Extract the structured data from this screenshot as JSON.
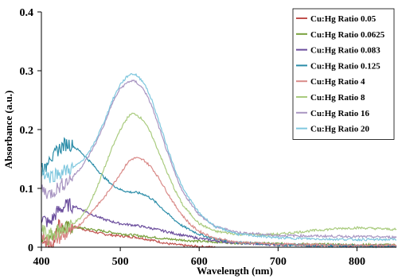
{
  "chart_data": {
    "type": "line",
    "title": "",
    "xlabel": "Wavelength (nm)",
    "ylabel": "Absorbance (a.u.)",
    "xlim": [
      400,
      850
    ],
    "ylim": [
      0,
      0.4
    ],
    "xticks": [
      400,
      500,
      600,
      700,
      800
    ],
    "xtick_labels": [
      "400",
      "500",
      "600",
      "700",
      "800"
    ],
    "yticks": [
      0,
      0.1,
      0.2,
      0.3,
      0.4
    ],
    "ytick_labels": [
      "0",
      "0.1",
      "0.2",
      "0.3",
      "0.4"
    ],
    "grid": false,
    "legend_position": "top-right",
    "series": [
      {
        "name": "Cu:Hg Ratio 0.05",
        "color": "#c0504d",
        "x": [
          400,
          405,
          410,
          415,
          420,
          425,
          430,
          440,
          450,
          460,
          480,
          500,
          520,
          540,
          560,
          580,
          600,
          620
        ],
        "y": [
          0.02,
          0.01,
          0.0,
          0.0,
          0.04,
          0.03,
          0.03,
          0.035,
          0.032,
          0.028,
          0.022,
          0.019,
          0.017,
          0.012,
          0.006,
          0.003,
          0.001,
          0.0
        ]
      },
      {
        "name": "Cu:Hg Ratio 0.0625",
        "color": "#77a03b",
        "x": [
          400,
          410,
          420,
          425,
          430,
          440,
          450,
          460,
          480,
          500,
          520,
          540,
          560,
          580,
          600,
          620,
          650,
          700,
          750,
          800,
          850
        ],
        "y": [
          0.02,
          0.015,
          0.03,
          0.032,
          0.033,
          0.034,
          0.033,
          0.031,
          0.027,
          0.023,
          0.02,
          0.017,
          0.014,
          0.012,
          0.01,
          0.009,
          0.007,
          0.006,
          0.005,
          0.004,
          0.004
        ]
      },
      {
        "name": "Cu:Hg Ratio 0.083",
        "color": "#6a4c9c",
        "x": [
          400,
          410,
          420,
          425,
          430,
          435,
          440,
          450,
          460,
          480,
          500,
          520,
          540,
          560,
          580,
          600,
          620,
          650,
          700,
          750,
          800,
          850
        ],
        "y": [
          0.05,
          0.04,
          0.06,
          0.065,
          0.07,
          0.072,
          0.07,
          0.065,
          0.058,
          0.047,
          0.04,
          0.037,
          0.032,
          0.026,
          0.02,
          0.015,
          0.011,
          0.007,
          0.004,
          0.003,
          0.002,
          0.002
        ]
      },
      {
        "name": "Cu:Hg Ratio 0.125",
        "color": "#2a8ca8",
        "x": [
          400,
          405,
          410,
          415,
          420,
          425,
          430,
          435,
          440,
          450,
          460,
          470,
          480,
          490,
          500,
          510,
          520,
          530,
          540,
          550,
          560,
          570,
          580,
          600,
          620,
          650,
          700,
          750,
          800,
          850
        ],
        "y": [
          0.14,
          0.13,
          0.16,
          0.15,
          0.165,
          0.17,
          0.175,
          0.176,
          0.172,
          0.162,
          0.148,
          0.133,
          0.118,
          0.106,
          0.098,
          0.094,
          0.093,
          0.09,
          0.082,
          0.07,
          0.057,
          0.045,
          0.035,
          0.022,
          0.014,
          0.008,
          0.004,
          0.003,
          0.002,
          0.002
        ]
      },
      {
        "name": "Cu:Hg Ratio 4",
        "color": "#d98a88",
        "x": [
          400,
          410,
          420,
          430,
          440,
          450,
          460,
          470,
          480,
          490,
          500,
          510,
          515,
          520,
          530,
          540,
          550,
          560,
          570,
          580,
          590,
          600,
          620,
          650,
          700,
          750,
          800,
          850
        ],
        "y": [
          0.02,
          0.01,
          0.015,
          0.02,
          0.03,
          0.04,
          0.055,
          0.07,
          0.085,
          0.105,
          0.125,
          0.145,
          0.15,
          0.152,
          0.148,
          0.135,
          0.115,
          0.092,
          0.07,
          0.052,
          0.037,
          0.027,
          0.015,
          0.008,
          0.005,
          0.004,
          0.003,
          0.003
        ]
      },
      {
        "name": "Cu:Hg Ratio 8",
        "color": "#a9cb7e",
        "x": [
          400,
          410,
          420,
          430,
          440,
          450,
          460,
          470,
          480,
          490,
          500,
          510,
          515,
          520,
          530,
          540,
          550,
          560,
          570,
          580,
          600,
          620,
          650,
          680,
          700,
          720,
          750,
          780,
          800,
          820,
          850
        ],
        "y": [
          0.03,
          0.02,
          0.025,
          0.03,
          0.04,
          0.05,
          0.07,
          0.1,
          0.135,
          0.17,
          0.2,
          0.222,
          0.227,
          0.226,
          0.215,
          0.19,
          0.158,
          0.125,
          0.095,
          0.07,
          0.04,
          0.027,
          0.022,
          0.021,
          0.022,
          0.025,
          0.029,
          0.032,
          0.033,
          0.032,
          0.03
        ]
      },
      {
        "name": "Cu:Hg Ratio 16",
        "color": "#a996c2",
        "x": [
          400,
          410,
          420,
          430,
          440,
          450,
          460,
          470,
          480,
          490,
          500,
          510,
          515,
          520,
          530,
          540,
          550,
          560,
          570,
          580,
          600,
          620,
          650,
          700,
          750,
          800,
          850
        ],
        "y": [
          0.1,
          0.09,
          0.1,
          0.11,
          0.12,
          0.135,
          0.155,
          0.18,
          0.21,
          0.245,
          0.27,
          0.281,
          0.283,
          0.281,
          0.268,
          0.24,
          0.2,
          0.16,
          0.123,
          0.092,
          0.055,
          0.035,
          0.025,
          0.02,
          0.019,
          0.018,
          0.017
        ]
      },
      {
        "name": "Cu:Hg Ratio 20",
        "color": "#7fc7de",
        "x": [
          400,
          410,
          420,
          430,
          440,
          450,
          460,
          470,
          480,
          490,
          500,
          510,
          515,
          520,
          530,
          540,
          550,
          560,
          570,
          580,
          600,
          620,
          650,
          700,
          750,
          800,
          850
        ],
        "y": [
          0.13,
          0.12,
          0.125,
          0.13,
          0.135,
          0.145,
          0.16,
          0.185,
          0.215,
          0.25,
          0.277,
          0.292,
          0.295,
          0.293,
          0.28,
          0.25,
          0.21,
          0.168,
          0.13,
          0.098,
          0.058,
          0.035,
          0.022,
          0.016,
          0.014,
          0.013,
          0.013
        ]
      }
    ]
  }
}
